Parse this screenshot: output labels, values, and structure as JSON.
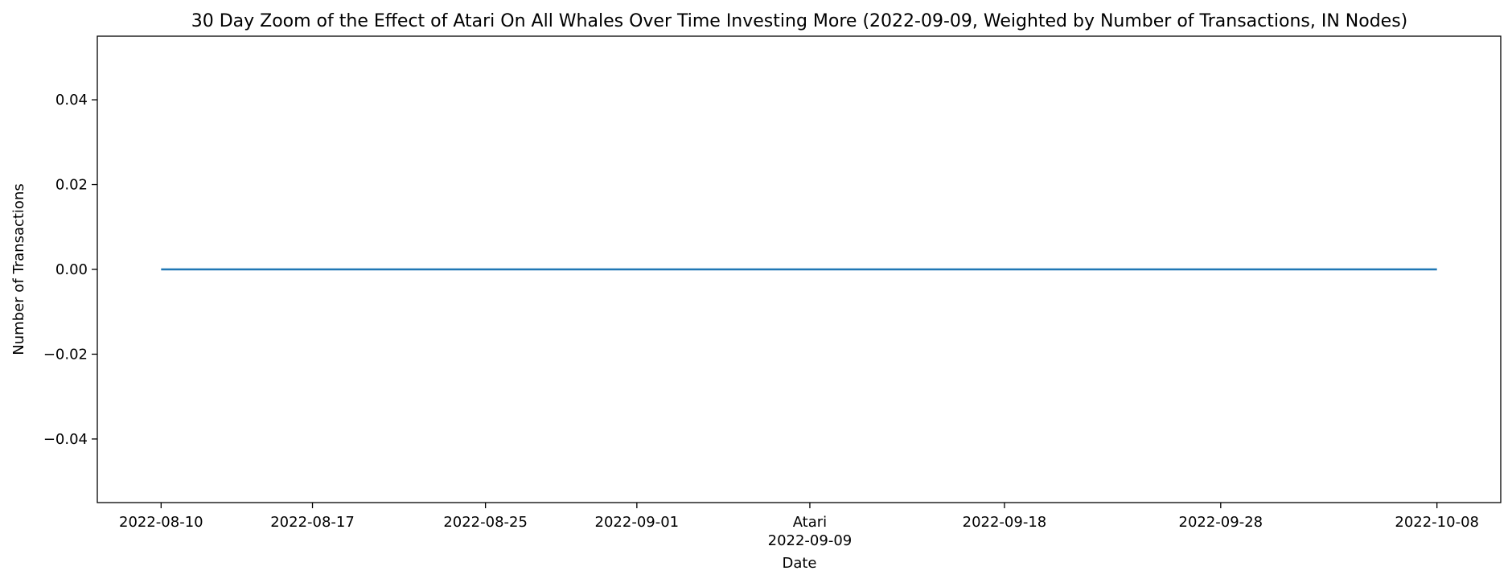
{
  "chart_data": {
    "type": "line",
    "title": "30 Day Zoom of the Effect of Atari On All Whales Over Time Investing More (2022-09-09, Weighted by Number of Transactions, IN Nodes)",
    "xlabel": "Date",
    "ylabel": "Number of Transactions",
    "x_range": [
      "2022-08-10",
      "2022-10-08"
    ],
    "ylim": [
      -0.055,
      0.055
    ],
    "x_ticks": [
      {
        "date": "2022-08-10",
        "label": "2022-08-10"
      },
      {
        "date": "2022-08-17",
        "label": "2022-08-17"
      },
      {
        "date": "2022-08-25",
        "label": "2022-08-25"
      },
      {
        "date": "2022-09-01",
        "label": "2022-09-01"
      },
      {
        "date": "2022-09-09",
        "label": "Atari",
        "sublabel": "2022-09-09"
      },
      {
        "date": "2022-09-18",
        "label": "2022-09-18"
      },
      {
        "date": "2022-09-28",
        "label": "2022-09-28"
      },
      {
        "date": "2022-10-08",
        "label": "2022-10-08"
      }
    ],
    "y_ticks": [
      {
        "value": 0.04,
        "label": "0.04"
      },
      {
        "value": 0.02,
        "label": "0.02"
      },
      {
        "value": 0.0,
        "label": "0.00"
      },
      {
        "value": -0.02,
        "label": "−0.02"
      },
      {
        "value": -0.04,
        "label": "−0.04"
      }
    ],
    "series": [
      {
        "color": "#1f77b4",
        "x": [
          "2022-08-10",
          "2022-10-08"
        ],
        "y": [
          0,
          0
        ]
      }
    ],
    "grid": false
  }
}
